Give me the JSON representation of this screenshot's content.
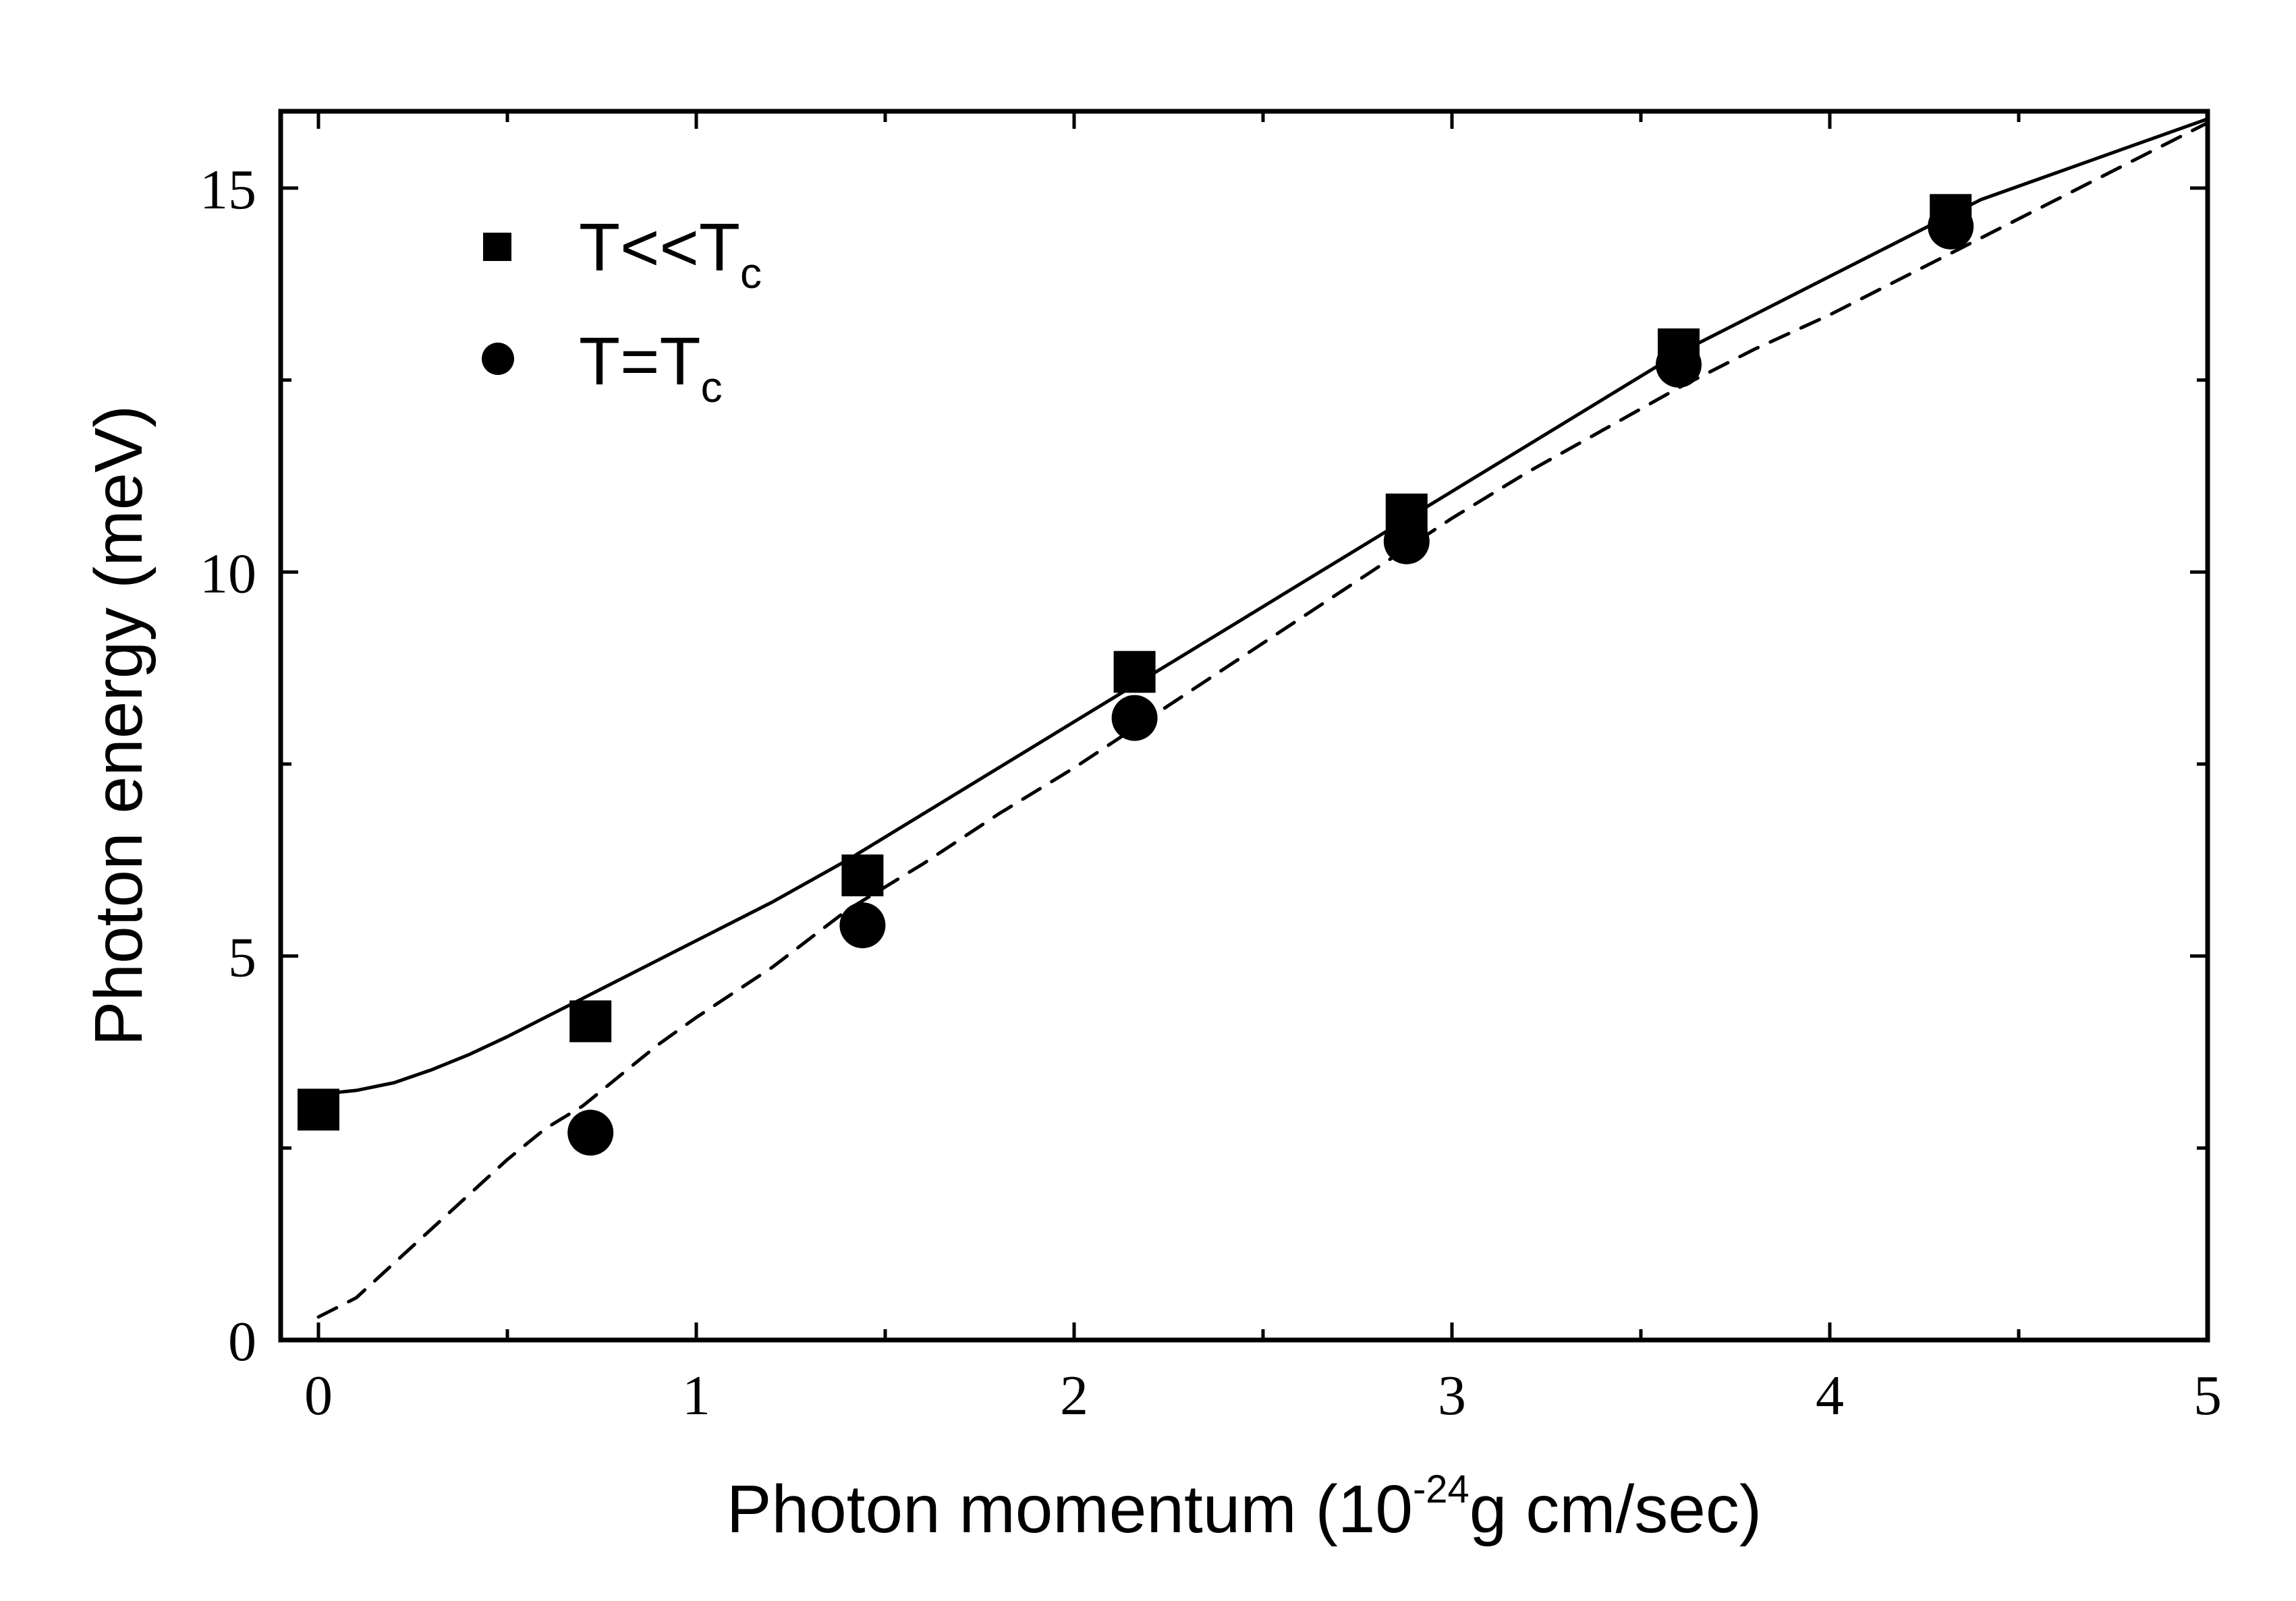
{
  "chart_data": {
    "type": "scatter",
    "xlabel": {
      "main": "Photon momentum (10",
      "sup": "-24",
      "tail": "g cm/sec)"
    },
    "ylabel": "Photon energy (meV)",
    "xlim": [
      -0.1,
      5
    ],
    "ylim": [
      0,
      16
    ],
    "xticks": [
      0,
      1,
      2,
      3,
      4,
      5
    ],
    "xtick_labels": [
      "0",
      "1",
      "2",
      "3",
      "4",
      "5"
    ],
    "yticks": [
      0,
      5,
      10,
      15
    ],
    "ytick_labels": [
      "0",
      "5",
      "10",
      "15"
    ],
    "grid": false,
    "legend_position": "top-left",
    "series": [
      {
        "name": "T<<Tc",
        "label_main": "T<<T",
        "label_sub": "c",
        "marker": "square",
        "x": [
          0,
          0.72,
          1.44,
          2.16,
          2.88,
          3.6,
          4.32
        ],
        "y": [
          3.0,
          4.15,
          6.05,
          8.7,
          10.75,
          12.9,
          14.65
        ]
      },
      {
        "name": "T=Tc",
        "label_main": "T=T",
        "label_sub": "c",
        "marker": "circle",
        "x": [
          0.72,
          1.44,
          2.16,
          2.88,
          3.6,
          4.32
        ],
        "y": [
          2.7,
          5.4,
          8.1,
          10.4,
          12.7,
          14.5
        ]
      }
    ],
    "curves": [
      {
        "name": "T<<Tc fit",
        "style": "solid",
        "x": [
          0.0,
          0.1,
          0.2,
          0.3,
          0.4,
          0.5,
          0.6,
          0.7,
          0.8,
          0.9,
          1.0,
          1.2,
          1.4,
          1.6,
          1.8,
          2.0,
          2.2,
          2.4,
          2.6,
          2.8,
          3.0,
          3.2,
          3.4,
          3.6,
          3.8,
          4.0,
          4.2,
          4.4,
          4.6,
          4.8,
          5.0
        ],
        "y": [
          3.2,
          3.25,
          3.35,
          3.52,
          3.72,
          3.95,
          4.2,
          4.45,
          4.7,
          4.95,
          5.2,
          5.7,
          6.25,
          6.85,
          7.45,
          8.05,
          8.65,
          9.25,
          9.85,
          10.45,
          11.05,
          11.65,
          12.25,
          12.85,
          13.35,
          13.85,
          14.35,
          14.85,
          15.2,
          15.55,
          15.9
        ]
      },
      {
        "name": "T=Tc fit",
        "style": "dashed",
        "x": [
          0.0,
          0.1,
          0.2,
          0.3,
          0.4,
          0.5,
          0.6,
          0.7,
          0.8,
          0.9,
          1.0,
          1.2,
          1.4,
          1.6,
          1.8,
          2.0,
          2.2,
          2.4,
          2.6,
          2.8,
          3.0,
          3.2,
          3.4,
          3.6,
          3.8,
          4.0,
          4.2,
          4.4,
          4.6,
          4.8,
          5.0
        ],
        "y": [
          0.3,
          0.55,
          1.0,
          1.45,
          1.9,
          2.35,
          2.75,
          3.05,
          3.45,
          3.85,
          4.2,
          4.85,
          5.6,
          6.2,
          6.85,
          7.45,
          8.1,
          8.75,
          9.4,
          10.05,
          10.7,
          11.3,
          11.85,
          12.4,
          12.9,
          13.35,
          13.85,
          14.35,
          14.85,
          15.35,
          15.85
        ]
      }
    ]
  }
}
